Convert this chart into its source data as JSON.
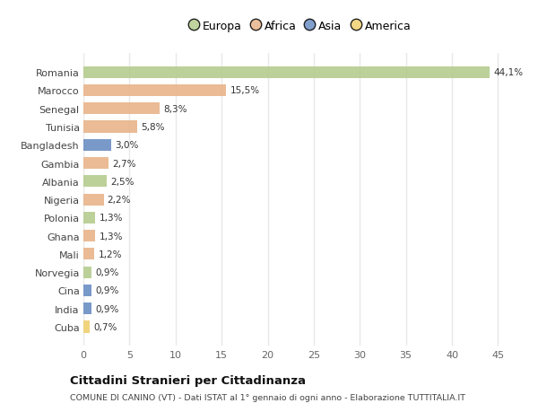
{
  "countries": [
    "Romania",
    "Marocco",
    "Senegal",
    "Tunisia",
    "Bangladesh",
    "Gambia",
    "Albania",
    "Nigeria",
    "Polonia",
    "Ghana",
    "Mali",
    "Norvegia",
    "Cina",
    "India",
    "Cuba"
  ],
  "values": [
    44.1,
    15.5,
    8.3,
    5.8,
    3.0,
    2.7,
    2.5,
    2.2,
    1.3,
    1.3,
    1.2,
    0.9,
    0.9,
    0.9,
    0.7
  ],
  "labels": [
    "44,1%",
    "15,5%",
    "8,3%",
    "5,8%",
    "3,0%",
    "2,7%",
    "2,5%",
    "2,2%",
    "1,3%",
    "1,3%",
    "1,2%",
    "0,9%",
    "0,9%",
    "0,9%",
    "0,7%"
  ],
  "continents": [
    "Europa",
    "Africa",
    "Africa",
    "Africa",
    "Asia",
    "Africa",
    "Europa",
    "Africa",
    "Europa",
    "Africa",
    "Africa",
    "Europa",
    "Asia",
    "Asia",
    "America"
  ],
  "colors": {
    "Europa": "#b5cc8e",
    "Africa": "#e8b48a",
    "Asia": "#6b8ec4",
    "America": "#f0d070"
  },
  "legend_order": [
    "Europa",
    "Africa",
    "Asia",
    "America"
  ],
  "legend_colors": [
    "#b5cc8e",
    "#e8b48a",
    "#6b8ec4",
    "#f0d070"
  ],
  "background_color": "#ffffff",
  "grid_color": "#e8e8e8",
  "title": "Cittadini Stranieri per Cittadinanza",
  "subtitle": "COMUNE DI CANINO (VT) - Dati ISTAT al 1° gennaio di ogni anno - Elaborazione TUTTITALIA.IT",
  "xlim": [
    0,
    47
  ],
  "xticks": [
    0,
    5,
    10,
    15,
    20,
    25,
    30,
    35,
    40,
    45
  ]
}
